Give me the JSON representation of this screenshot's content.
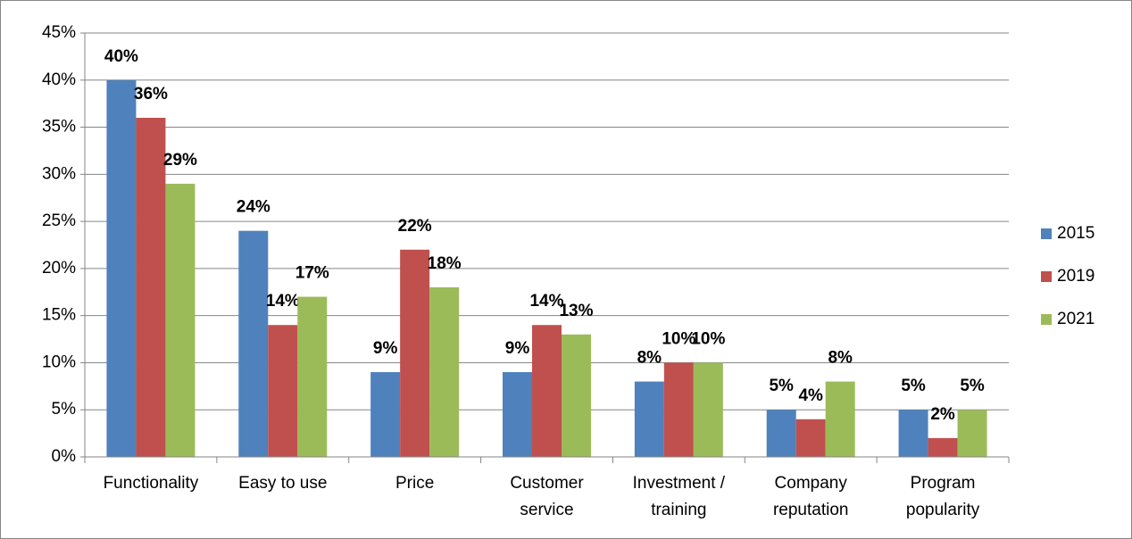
{
  "chart_data": {
    "type": "bar",
    "categories": [
      "Functionality",
      "Easy to use",
      "Price",
      "Customer service",
      "Investment / training",
      "Company reputation",
      "Program popularity"
    ],
    "series": [
      {
        "name": "2015",
        "color": "#4f81bd",
        "values": [
          40,
          24,
          9,
          9,
          8,
          5,
          5
        ],
        "value_labels": [
          "40%",
          "24%",
          "9%",
          "9%",
          "8%",
          "5%",
          "5%"
        ]
      },
      {
        "name": "2019",
        "color": "#c0504d",
        "values": [
          36,
          14,
          22,
          14,
          10,
          4,
          2
        ],
        "value_labels": [
          "36%",
          "14%",
          "22%",
          "14%",
          "10%",
          "4%",
          "2%"
        ]
      },
      {
        "name": "2021",
        "color": "#9bbb59",
        "values": [
          29,
          17,
          18,
          13,
          10,
          8,
          5
        ],
        "value_labels": [
          "29%",
          "17%",
          "18%",
          "13%",
          "10%",
          "8%",
          "5%"
        ]
      }
    ],
    "ylim": [
      0,
      45
    ],
    "yticks": [
      {
        "value": 0,
        "label": "0%"
      },
      {
        "value": 5,
        "label": "5%"
      },
      {
        "value": 10,
        "label": "10%"
      },
      {
        "value": 15,
        "label": "15%"
      },
      {
        "value": 20,
        "label": "20%"
      },
      {
        "value": 25,
        "label": "25%"
      },
      {
        "value": 30,
        "label": "30%"
      },
      {
        "value": 35,
        "label": "35%"
      },
      {
        "value": 40,
        "label": "40%"
      },
      {
        "value": 45,
        "label": "45%"
      }
    ],
    "grid": true,
    "legend": "right"
  }
}
